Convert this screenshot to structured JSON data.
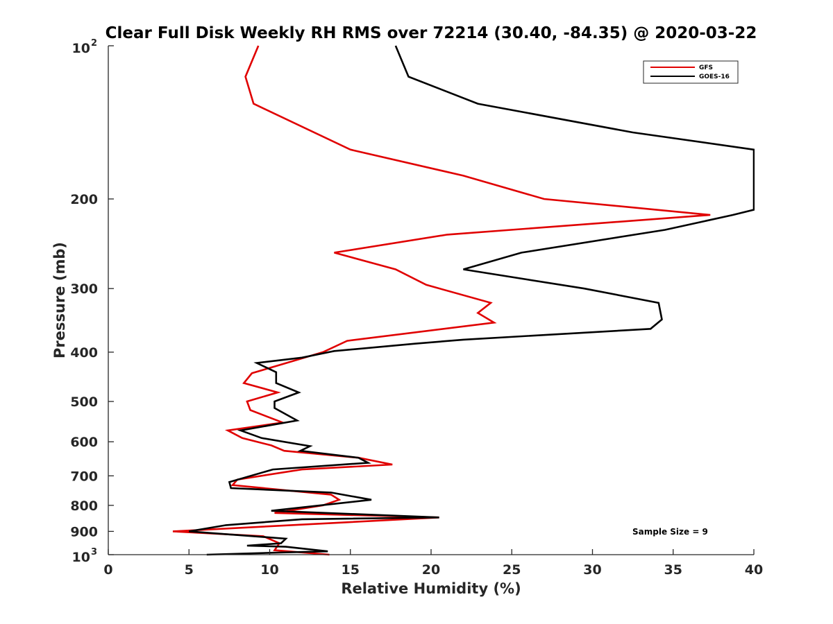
{
  "chart_data": {
    "type": "line",
    "title": "Clear Full Disk Weekly RH RMS over 72214 (30.40, -84.35) @ 2020-03-22",
    "xlabel": "Relative Humidity (%)",
    "ylabel": "Pressure (mb)",
    "xlim": [
      0,
      40
    ],
    "ylim": [
      100,
      1000
    ],
    "yscale": "log",
    "y_reversed": true,
    "x_ticks": [
      "0",
      "5",
      "10",
      "15",
      "20",
      "25",
      "30",
      "35",
      "40"
    ],
    "y_ticks": [
      {
        "value": 200,
        "label": "200"
      },
      {
        "value": 300,
        "label": "300"
      },
      {
        "value": 400,
        "label": "400"
      },
      {
        "value": 500,
        "label": "500"
      },
      {
        "value": 600,
        "label": "600"
      },
      {
        "value": 700,
        "label": "700"
      },
      {
        "value": 800,
        "label": "800"
      },
      {
        "value": 900,
        "label": "900"
      }
    ],
    "y_tick_100": {
      "base": "10",
      "exp": "2"
    },
    "y_tick_1000": {
      "base": "10",
      "exp": "3"
    },
    "legend": {
      "location": "top-right",
      "entries": [
        "GFS",
        "GOES-16"
      ]
    },
    "annotation": "Sample Size = 9",
    "series": [
      {
        "name": "GFS",
        "color": "#e00000",
        "points": [
          [
            9.3,
            100
          ],
          [
            8.5,
            115
          ],
          [
            9.0,
            130
          ],
          [
            15.0,
            160
          ],
          [
            22.0,
            180
          ],
          [
            27.0,
            200
          ],
          [
            37.3,
            215
          ],
          [
            21.0,
            235
          ],
          [
            14.0,
            255
          ],
          [
            17.8,
            275
          ],
          [
            19.7,
            295
          ],
          [
            23.7,
            320
          ],
          [
            22.9,
            335
          ],
          [
            23.9,
            350
          ],
          [
            14.8,
            380
          ],
          [
            13.3,
            400
          ],
          [
            10.5,
            425
          ],
          [
            8.9,
            440
          ],
          [
            8.4,
            460
          ],
          [
            10.5,
            480
          ],
          [
            8.6,
            500
          ],
          [
            8.8,
            520
          ],
          [
            10.8,
            550
          ],
          [
            7.4,
            570
          ],
          [
            8.3,
            590
          ],
          [
            10.1,
            610
          ],
          [
            10.9,
            625
          ],
          [
            15.5,
            645
          ],
          [
            17.6,
            665
          ],
          [
            12.0,
            680
          ],
          [
            8.0,
            712
          ],
          [
            7.7,
            730
          ],
          [
            13.8,
            762
          ],
          [
            14.3,
            780
          ],
          [
            13.3,
            800
          ],
          [
            10.3,
            828
          ],
          [
            20.5,
            845
          ],
          [
            4.0,
            900
          ],
          [
            9.6,
            920
          ],
          [
            10.6,
            950
          ],
          [
            10.3,
            980
          ],
          [
            13.7,
            1000
          ]
        ]
      },
      {
        "name": "GOES-16",
        "color": "#000000",
        "points": [
          [
            17.8,
            100
          ],
          [
            18.6,
            115
          ],
          [
            22.9,
            130
          ],
          [
            32.5,
            148
          ],
          [
            40.0,
            160
          ],
          [
            40.0,
            210
          ],
          [
            38.7,
            215
          ],
          [
            34.5,
            230
          ],
          [
            25.6,
            255
          ],
          [
            22.0,
            275
          ],
          [
            29.5,
            300
          ],
          [
            34.1,
            320
          ],
          [
            34.3,
            345
          ],
          [
            33.6,
            360
          ],
          [
            22.0,
            378
          ],
          [
            19.0,
            385
          ],
          [
            14.0,
            398
          ],
          [
            12.0,
            410
          ],
          [
            9.2,
            420
          ],
          [
            10.4,
            438
          ],
          [
            10.4,
            460
          ],
          [
            11.8,
            480
          ],
          [
            10.3,
            500
          ],
          [
            10.3,
            515
          ],
          [
            11.7,
            545
          ],
          [
            8.2,
            570
          ],
          [
            9.5,
            590
          ],
          [
            12.5,
            612
          ],
          [
            11.9,
            625
          ],
          [
            15.5,
            645
          ],
          [
            16.1,
            660
          ],
          [
            10.2,
            680
          ],
          [
            7.5,
            720
          ],
          [
            7.6,
            740
          ],
          [
            13.8,
            755
          ],
          [
            16.3,
            780
          ],
          [
            10.1,
            820
          ],
          [
            20.5,
            845
          ],
          [
            12.0,
            852
          ],
          [
            7.3,
            875
          ],
          [
            5.0,
            900
          ],
          [
            11.0,
            930
          ],
          [
            10.7,
            950
          ],
          [
            8.6,
            960
          ],
          [
            11.0,
            965
          ],
          [
            13.6,
            985
          ],
          [
            10.8,
            990
          ],
          [
            6.1,
            1000
          ]
        ]
      }
    ]
  }
}
